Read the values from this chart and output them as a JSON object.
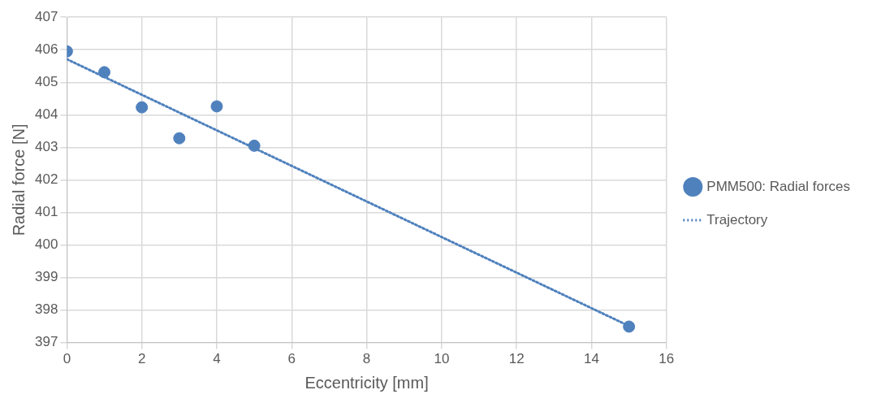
{
  "chart_data": {
    "type": "scatter",
    "xlabel": "Eccentricity [mm]",
    "ylabel": "Radial force [N]",
    "xlim": [
      0,
      16
    ],
    "xticks": [
      0,
      2,
      4,
      6,
      8,
      10,
      12,
      14,
      16
    ],
    "ylim": [
      397,
      407
    ],
    "yticks": [
      397,
      398,
      399,
      400,
      401,
      402,
      403,
      404,
      405,
      406,
      407
    ],
    "grid": true,
    "legend": "right",
    "series": [
      {
        "name": "PMM500: Radial forces",
        "type": "scatter",
        "color": "#4f81bd",
        "marker": "circle",
        "x": [
          0,
          1,
          2,
          3,
          4,
          5,
          15
        ],
        "values": [
          405.95,
          405.31,
          404.23,
          403.28,
          404.26,
          403.05,
          397.49
        ]
      },
      {
        "name": "Trajectory",
        "type": "line",
        "color": "#4f81bd",
        "line_style": "dotted",
        "marker": "none",
        "x": [
          0,
          15
        ],
        "values": [
          405.71,
          397.51
        ]
      }
    ]
  }
}
